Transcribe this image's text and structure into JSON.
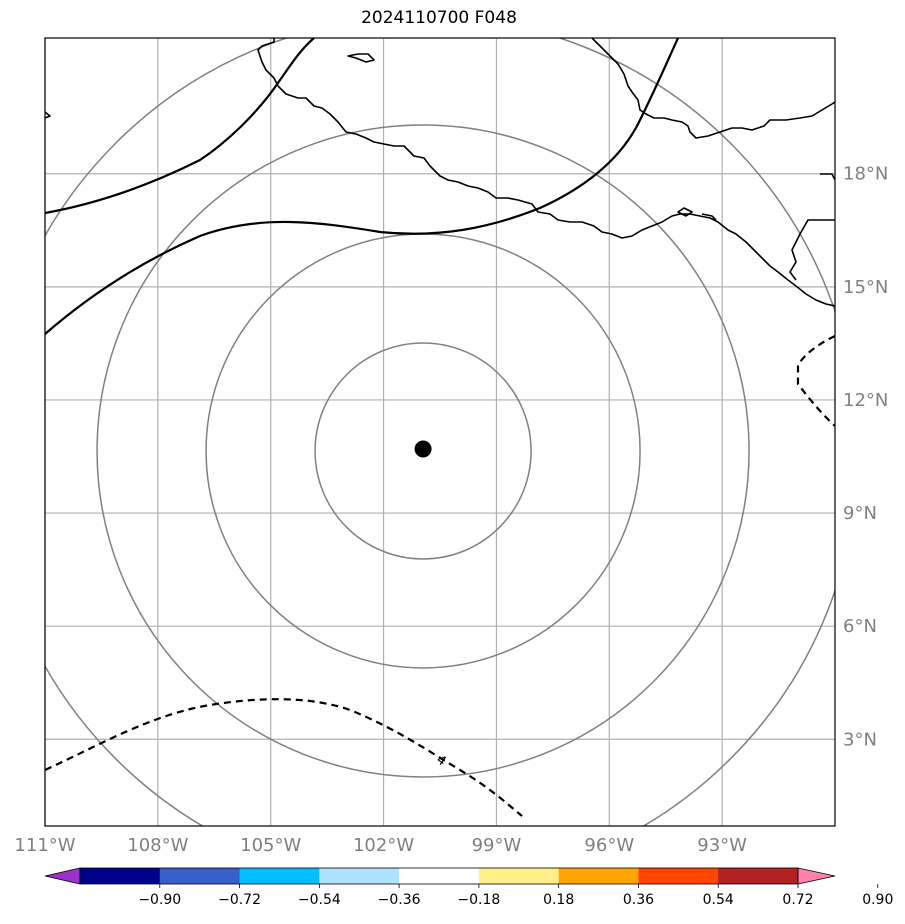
{
  "title": "2024110700 F048",
  "map": {
    "lon_range": [
      -111,
      -90
    ],
    "lat_range": [
      0.7,
      21.6
    ],
    "center_marker": {
      "lon": -100.95,
      "lat": 10.7
    },
    "lon_ticks": [
      {
        "value": -111,
        "label": "111°W"
      },
      {
        "value": -108,
        "label": "108°W"
      },
      {
        "value": -105,
        "label": "105°W"
      },
      {
        "value": -102,
        "label": "102°W"
      },
      {
        "value": -99,
        "label": "99°W"
      },
      {
        "value": -96,
        "label": "96°W"
      },
      {
        "value": -93,
        "label": "93°W"
      }
    ],
    "lat_ticks": [
      {
        "value": 3,
        "label": "3°N"
      },
      {
        "value": 6,
        "label": "6°N"
      },
      {
        "value": 9,
        "label": "9°N"
      },
      {
        "value": 12,
        "label": "12°N"
      },
      {
        "value": 15,
        "label": "15°N"
      },
      {
        "value": 18,
        "label": "18°N"
      }
    ],
    "contour_label": "4",
    "colors": {
      "grid": "#b0b0b0",
      "range_rings": "#808080",
      "coastline": "#000000",
      "contours": "#000000",
      "marker": "#000000"
    }
  },
  "colorbar": {
    "extend": "both",
    "ticks": [
      "−0.90",
      "−0.72",
      "−0.54",
      "−0.36",
      "−0.18",
      "0.18",
      "0.36",
      "0.54",
      "0.72",
      "0.90"
    ],
    "colors": [
      "#9932cc",
      "#00008b",
      "#3a5fcd",
      "#00bfff",
      "#b0e2ff",
      "#ffffff",
      "#fff08a",
      "#ffa500",
      "#ff4500",
      "#b22222",
      "#ff82ab"
    ]
  }
}
